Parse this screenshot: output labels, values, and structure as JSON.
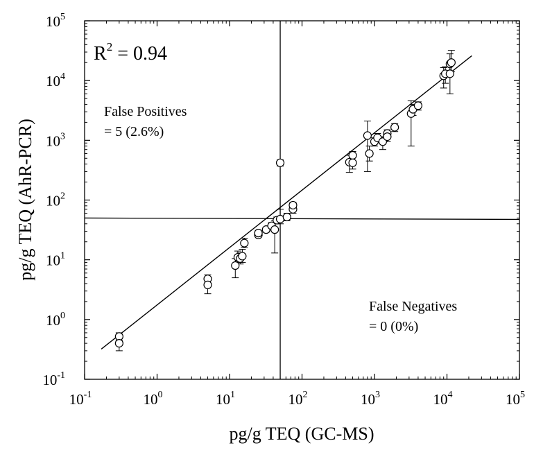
{
  "chart_data": {
    "type": "scatter",
    "x_scale": "log",
    "y_scale": "log",
    "xlim": [
      0.1,
      100000
    ],
    "ylim": [
      0.1,
      100000
    ],
    "xlabel": "pg/g TEQ (GC-MS)",
    "ylabel": "pg/g TEQ (AhR-PCR)",
    "tick_base": "10",
    "x_tick_exponents": [
      "-1",
      "0",
      "1",
      "2",
      "3",
      "4",
      "5"
    ],
    "y_tick_exponents": [
      "-1",
      "0",
      "1",
      "2",
      "3",
      "4",
      "5"
    ],
    "grid": false,
    "legend": "none",
    "annotations": {
      "r2_label": "R",
      "r2_superscript": "2",
      "r2_value": " = 0.94",
      "false_positives_line1": "False Positives",
      "false_positives_line2": "= 5 (2.6%)",
      "false_negatives_line1": "False Negatives",
      "false_negatives_line2": "= 0 (0%)"
    },
    "threshold": {
      "x": 50,
      "y": 50
    },
    "fit_line": {
      "x": [
        0.17,
        22000
      ],
      "y": [
        0.32,
        26000
      ]
    },
    "points": [
      {
        "x": 0.3,
        "y": 0.52,
        "err": [
          0.45,
          0.6
        ]
      },
      {
        "x": 0.3,
        "y": 0.4,
        "err": [
          0.3,
          0.5
        ]
      },
      {
        "x": 5,
        "y": 4.8,
        "err": [
          4.0,
          5.6
        ]
      },
      {
        "x": 5,
        "y": 3.8,
        "err": [
          2.7,
          4.5
        ]
      },
      {
        "x": 12,
        "y": 8.0,
        "err": [
          5.0,
          10.5
        ]
      },
      {
        "x": 13,
        "y": 11.0,
        "err": [
          9.0,
          14.0
        ]
      },
      {
        "x": 14,
        "y": 10.5,
        "err": [
          8.5,
          13.0
        ]
      },
      {
        "x": 15,
        "y": 11.5,
        "err": [
          9.0,
          15.0
        ]
      },
      {
        "x": 16,
        "y": 19.0,
        "err": [
          16.0,
          23.0
        ]
      },
      {
        "x": 25,
        "y": 26.0,
        "err": [
          24.0,
          29.0
        ]
      },
      {
        "x": 25,
        "y": 28.0,
        "err": [
          24.0,
          31.0
        ]
      },
      {
        "x": 32,
        "y": 32.0,
        "err": [
          29.0,
          35.0
        ]
      },
      {
        "x": 38,
        "y": 37.0,
        "err": [
          33.0,
          42.0
        ]
      },
      {
        "x": 42,
        "y": 32.0,
        "err": [
          13.0,
          45.0
        ]
      },
      {
        "x": 45,
        "y": 46.0,
        "err": [
          40.0,
          52.0
        ]
      },
      {
        "x": 50,
        "y": 48.0,
        "err": [
          40.0,
          70.0
        ]
      },
      {
        "x": 50,
        "y": 420.0,
        "err": [
          370.0,
          470.0
        ]
      },
      {
        "x": 62,
        "y": 52.0,
        "err": [
          45.0,
          60.0
        ]
      },
      {
        "x": 75,
        "y": 70.0,
        "err": [
          60.0,
          82.0
        ]
      },
      {
        "x": 75,
        "y": 82.0,
        "err": [
          70.0,
          92.0
        ]
      },
      {
        "x": 450,
        "y": 430.0,
        "err": [
          290.0,
          560.0
        ]
      },
      {
        "x": 500,
        "y": 560.0,
        "err": [
          440.0,
          650.0
        ]
      },
      {
        "x": 500,
        "y": 420.0,
        "err": [
          330.0,
          520.0
        ]
      },
      {
        "x": 800,
        "y": 1200.0,
        "err": [
          300.0,
          2100.0
        ]
      },
      {
        "x": 850,
        "y": 600.0,
        "err": [
          450.0,
          800.0
        ]
      },
      {
        "x": 1000,
        "y": 950.0,
        "err": [
          800.0,
          1100.0
        ]
      },
      {
        "x": 1100,
        "y": 1100.0,
        "err": [
          950.0,
          1300.0
        ]
      },
      {
        "x": 1300,
        "y": 950.0,
        "err": [
          700.0,
          1150.0
        ]
      },
      {
        "x": 1500,
        "y": 1300.0,
        "err": [
          1100.0,
          1500.0
        ]
      },
      {
        "x": 1500,
        "y": 1150.0,
        "err": [
          950.0,
          1350.0
        ]
      },
      {
        "x": 1900,
        "y": 1650.0,
        "err": [
          1400.0,
          1900.0
        ]
      },
      {
        "x": 3200,
        "y": 2800.0,
        "err": [
          800.0,
          4600.0
        ]
      },
      {
        "x": 3400,
        "y": 3300.0,
        "err": [
          2600.0,
          4000.0
        ]
      },
      {
        "x": 4000,
        "y": 3800.0,
        "err": [
          3200.0,
          4400.0
        ]
      },
      {
        "x": 9000,
        "y": 12000.0,
        "err": [
          7500.0,
          16500.0
        ]
      },
      {
        "x": 9500,
        "y": 13000.0,
        "err": [
          9000.0,
          17000.0
        ]
      },
      {
        "x": 11000,
        "y": 19000.0,
        "err": [
          13000.0,
          28000.0
        ]
      },
      {
        "x": 11000,
        "y": 13000.0,
        "err": [
          6000.0,
          20000.0
        ]
      },
      {
        "x": 11500,
        "y": 20000.0,
        "err": [
          14000.0,
          32000.0
        ]
      }
    ]
  }
}
